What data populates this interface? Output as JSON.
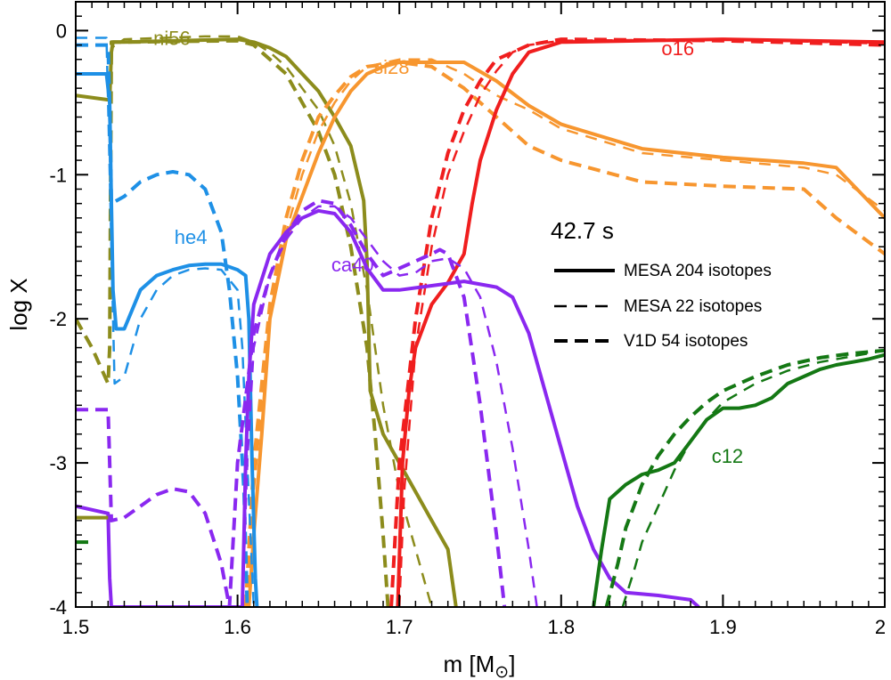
{
  "chart_data": {
    "type": "line",
    "title": "",
    "xlabel": "m [M",
    "xlabel_symbol": "⊙",
    "xlabel_close": "]",
    "ylabel": "log X",
    "xlim": [
      1.5,
      2.0
    ],
    "ylim": [
      -4,
      0.2
    ],
    "x_ticks": [
      {
        "value": 1.5,
        "label": "1.5"
      },
      {
        "value": 1.6,
        "label": "1.6"
      },
      {
        "value": 1.7,
        "label": "1.7"
      },
      {
        "value": 1.8,
        "label": "1.8"
      },
      {
        "value": 1.9,
        "label": "1.9"
      },
      {
        "value": 2.0,
        "label": "2"
      }
    ],
    "y_ticks": [
      {
        "value": 0,
        "label": "0"
      },
      {
        "value": -1,
        "label": "-1"
      },
      {
        "value": -2,
        "label": "-2"
      },
      {
        "value": -3,
        "label": "-3"
      },
      {
        "value": -4,
        "label": "-4"
      }
    ],
    "time_label": "42.7 s",
    "legend": [
      {
        "style": "solid",
        "label": "MESA 204 isotopes"
      },
      {
        "style": "dash_thin",
        "label": "MESA 22 isotopes"
      },
      {
        "style": "dash_thick",
        "label": "V1D 54 isotopes"
      }
    ],
    "isotopes": [
      {
        "name": "ni56",
        "color": "#8c8c1c",
        "label": {
          "text": "ni56",
          "x": 1.548,
          "y": -0.1
        }
      },
      {
        "name": "si28",
        "color": "#f7962f",
        "label": {
          "text": "si28",
          "x": 1.684,
          "y": -0.3
        }
      },
      {
        "name": "o16",
        "color": "#f01e1e",
        "label": {
          "text": "o16",
          "x": 1.862,
          "y": -0.17
        }
      },
      {
        "name": "he4",
        "color": "#1e90e6",
        "label": {
          "text": "he4",
          "x": 1.561,
          "y": -1.48
        }
      },
      {
        "name": "ca40",
        "color": "#8a28f0",
        "label": {
          "text": "ca40",
          "x": 1.658,
          "y": -1.67
        }
      },
      {
        "name": "c12",
        "color": "#147814",
        "label": {
          "text": "c12",
          "x": 1.893,
          "y": -3
        }
      }
    ],
    "series": [
      {
        "name": "ni56 MESA 204",
        "isotope": "ni56",
        "style": "solid",
        "x": [
          1.5,
          1.52,
          1.521,
          1.522,
          1.523,
          1.53,
          1.6,
          1.61,
          1.62,
          1.63,
          1.64,
          1.65,
          1.66,
          1.67,
          1.678,
          1.68,
          1.682,
          1.69,
          1.7,
          1.71,
          1.72,
          1.73,
          1.735
        ],
        "y": [
          -0.45,
          -0.48,
          -0.48,
          -0.15,
          -0.08,
          -0.08,
          -0.06,
          -0.08,
          -0.12,
          -0.18,
          -0.3,
          -0.42,
          -0.6,
          -0.8,
          -1.18,
          -1.6,
          -2.5,
          -2.8,
          -3.0,
          -3.2,
          -3.4,
          -3.6,
          -4.0
        ]
      },
      {
        "name": "ni56 MESA 22",
        "isotope": "ni56",
        "style": "dash_thin",
        "x": [
          1.5,
          1.52,
          1.521,
          1.522,
          1.53,
          1.58,
          1.6,
          1.61,
          1.62,
          1.63,
          1.64,
          1.65,
          1.66,
          1.67,
          1.68,
          1.69,
          1.7,
          1.71,
          1.72
        ],
        "y": [
          -0.45,
          -0.48,
          -0.48,
          -0.12,
          -0.06,
          -0.04,
          -0.04,
          -0.08,
          -0.15,
          -0.25,
          -0.4,
          -0.55,
          -0.8,
          -1.2,
          -1.8,
          -2.6,
          -3.2,
          -3.6,
          -4.0
        ]
      },
      {
        "name": "ni56 V1D 54",
        "isotope": "ni56",
        "style": "dash_thick",
        "x": [
          1.5,
          1.51,
          1.52,
          1.521,
          1.522,
          1.53,
          1.6,
          1.61,
          1.62,
          1.63,
          1.64,
          1.65,
          1.66,
          1.67,
          1.68,
          1.685,
          1.69,
          1.693
        ],
        "y": [
          -2.0,
          -2.2,
          -2.45,
          -2.2,
          -0.08,
          -0.08,
          -0.07,
          -0.1,
          -0.2,
          -0.3,
          -0.5,
          -0.7,
          -1.0,
          -1.5,
          -2.2,
          -2.8,
          -3.5,
          -4.0
        ]
      },
      {
        "name": "si28 MESA 204",
        "isotope": "si28",
        "style": "solid",
        "x": [
          1.607,
          1.61,
          1.615,
          1.62,
          1.63,
          1.64,
          1.65,
          1.66,
          1.67,
          1.68,
          1.69,
          1.7,
          1.72,
          1.74,
          1.76,
          1.78,
          1.8,
          1.85,
          1.9,
          1.95,
          1.97,
          2.0
        ],
        "y": [
          -4.0,
          -3.5,
          -2.8,
          -2.0,
          -1.45,
          -1.15,
          -0.85,
          -0.6,
          -0.42,
          -0.3,
          -0.25,
          -0.22,
          -0.22,
          -0.22,
          -0.35,
          -0.52,
          -0.65,
          -0.82,
          -0.88,
          -0.92,
          -0.95,
          -1.3
        ]
      },
      {
        "name": "si28 MESA 22",
        "isotope": "si28",
        "style": "dash_thin",
        "x": [
          1.606,
          1.61,
          1.62,
          1.63,
          1.64,
          1.65,
          1.66,
          1.67,
          1.68,
          1.7,
          1.72,
          1.74,
          1.76,
          1.78,
          1.8,
          1.85,
          1.9,
          1.95,
          1.97,
          2.0
        ],
        "y": [
          -4.0,
          -3.2,
          -2.0,
          -1.4,
          -1.0,
          -0.7,
          -0.5,
          -0.35,
          -0.25,
          -0.2,
          -0.2,
          -0.3,
          -0.45,
          -0.55,
          -0.68,
          -0.85,
          -0.9,
          -0.95,
          -1.0,
          -1.25
        ]
      },
      {
        "name": "si28 V1D 54",
        "isotope": "si28",
        "style": "dash_thick",
        "x": [
          1.605,
          1.61,
          1.62,
          1.63,
          1.64,
          1.65,
          1.66,
          1.67,
          1.68,
          1.7,
          1.72,
          1.74,
          1.76,
          1.78,
          1.8,
          1.85,
          1.9,
          1.95,
          1.97,
          2.0
        ],
        "y": [
          -4.0,
          -3.0,
          -1.9,
          -1.3,
          -0.9,
          -0.6,
          -0.45,
          -0.32,
          -0.25,
          -0.22,
          -0.25,
          -0.4,
          -0.6,
          -0.8,
          -0.9,
          -1.05,
          -1.08,
          -1.1,
          -1.3,
          -1.55
        ]
      },
      {
        "name": "o16 MESA 204",
        "isotope": "o16",
        "style": "solid",
        "x": [
          1.699,
          1.702,
          1.706,
          1.71,
          1.72,
          1.73,
          1.74,
          1.745,
          1.75,
          1.76,
          1.77,
          1.78,
          1.8,
          1.9,
          2.0
        ],
        "y": [
          -4.0,
          -3.0,
          -2.5,
          -2.2,
          -1.9,
          -1.75,
          -1.55,
          -1.2,
          -0.9,
          -0.55,
          -0.3,
          -0.15,
          -0.08,
          -0.06,
          -0.08
        ]
      },
      {
        "name": "o16 MESA 22",
        "isotope": "o16",
        "style": "dash_thin",
        "x": [
          1.7,
          1.703,
          1.71,
          1.72,
          1.73,
          1.74,
          1.75,
          1.76,
          1.77,
          1.78,
          1.8,
          1.9,
          2.0
        ],
        "y": [
          -4.0,
          -3.2,
          -2.2,
          -1.5,
          -1.0,
          -0.7,
          -0.45,
          -0.28,
          -0.15,
          -0.1,
          -0.07,
          -0.06,
          -0.09
        ]
      },
      {
        "name": "o16 V1D 54",
        "isotope": "o16",
        "style": "dash_thick",
        "x": [
          1.695,
          1.7,
          1.71,
          1.72,
          1.73,
          1.74,
          1.75,
          1.76,
          1.78,
          1.8,
          1.9,
          2.0
        ],
        "y": [
          -4.0,
          -3.0,
          -2.0,
          -1.3,
          -0.85,
          -0.55,
          -0.35,
          -0.2,
          -0.1,
          -0.06,
          -0.07,
          -0.1
        ]
      },
      {
        "name": "he4 MESA 204",
        "isotope": "he4",
        "style": "solid",
        "x": [
          1.5,
          1.519,
          1.521,
          1.522,
          1.523,
          1.525,
          1.53,
          1.54,
          1.55,
          1.56,
          1.57,
          1.58,
          1.59,
          1.6,
          1.605,
          1.607,
          1.609,
          1.611,
          1.612
        ],
        "y": [
          -0.3,
          -0.3,
          -0.5,
          -1.2,
          -1.8,
          -2.07,
          -2.07,
          -1.8,
          -1.7,
          -1.66,
          -1.63,
          -1.62,
          -1.62,
          -1.66,
          -1.7,
          -2.0,
          -3.0,
          -3.8,
          -4.0
        ]
      },
      {
        "name": "he4 MESA 22",
        "isotope": "he4",
        "style": "dash_thin",
        "x": [
          1.5,
          1.519,
          1.52,
          1.522,
          1.524,
          1.53,
          1.54,
          1.55,
          1.56,
          1.57,
          1.58,
          1.59,
          1.6,
          1.603,
          1.606,
          1.61
        ],
        "y": [
          -0.05,
          -0.05,
          -0.5,
          -1.5,
          -2.45,
          -2.4,
          -2.0,
          -1.8,
          -1.7,
          -1.66,
          -1.65,
          -1.66,
          -1.8,
          -2.2,
          -3.0,
          -4.0
        ]
      },
      {
        "name": "he4 V1D 54",
        "isotope": "he4",
        "style": "dash_thick",
        "x": [
          1.5,
          1.52,
          1.521,
          1.522,
          1.53,
          1.54,
          1.55,
          1.56,
          1.57,
          1.58,
          1.59,
          1.595,
          1.6,
          1.604,
          1.606
        ],
        "y": [
          -0.1,
          -0.1,
          -0.5,
          -1.2,
          -1.15,
          -1.05,
          -1.0,
          -0.98,
          -1.0,
          -1.1,
          -1.4,
          -1.8,
          -2.4,
          -3.2,
          -4.0
        ]
      },
      {
        "name": "ca40 MESA 204",
        "isotope": "ca40",
        "style": "solid",
        "x": [
          1.5,
          1.52,
          1.521,
          1.522,
          1.603,
          1.605,
          1.607,
          1.61,
          1.62,
          1.63,
          1.64,
          1.65,
          1.66,
          1.67,
          1.68,
          1.69,
          1.7,
          1.72,
          1.74,
          1.76,
          1.77,
          1.78,
          1.79,
          1.8,
          1.81,
          1.82,
          1.83,
          1.84,
          1.86,
          1.88,
          1.885
        ],
        "y": [
          -3.3,
          -3.35,
          -3.8,
          -4.0,
          -4.0,
          -3.0,
          -2.4,
          -1.9,
          -1.55,
          -1.4,
          -1.3,
          -1.25,
          -1.27,
          -1.4,
          -1.65,
          -1.8,
          -1.8,
          -1.77,
          -1.74,
          -1.78,
          -1.85,
          -2.1,
          -2.5,
          -2.9,
          -3.3,
          -3.6,
          -3.8,
          -3.9,
          -3.92,
          -3.95,
          -4.0
        ]
      },
      {
        "name": "ca40 MESA 22",
        "isotope": "ca40",
        "style": "dash_thin",
        "x": [
          1.603,
          1.606,
          1.61,
          1.62,
          1.63,
          1.64,
          1.65,
          1.66,
          1.67,
          1.68,
          1.69,
          1.7,
          1.71,
          1.72,
          1.73,
          1.74,
          1.75,
          1.76,
          1.77,
          1.78,
          1.785
        ],
        "y": [
          -4.0,
          -3.0,
          -2.2,
          -1.7,
          -1.45,
          -1.3,
          -1.22,
          -1.22,
          -1.3,
          -1.45,
          -1.6,
          -1.7,
          -1.68,
          -1.6,
          -1.58,
          -1.65,
          -1.85,
          -2.3,
          -2.9,
          -3.6,
          -4.0
        ]
      },
      {
        "name": "ca40 V1D 54",
        "isotope": "ca40",
        "style": "dash_thick",
        "x": [
          1.5,
          1.52,
          1.521,
          1.522,
          1.53,
          1.54,
          1.55,
          1.56,
          1.57,
          1.58,
          1.59,
          1.595,
          1.6,
          1.61,
          1.62,
          1.63,
          1.64,
          1.65,
          1.66,
          1.67,
          1.68,
          1.69,
          1.7,
          1.71,
          1.72,
          1.725,
          1.73,
          1.74,
          1.75,
          1.76,
          1.765
        ],
        "y": [
          -2.63,
          -2.63,
          -3.0,
          -3.4,
          -3.38,
          -3.3,
          -3.22,
          -3.18,
          -3.2,
          -3.35,
          -3.7,
          -4.0,
          -3.0,
          -2.1,
          -1.7,
          -1.42,
          -1.25,
          -1.18,
          -1.2,
          -1.35,
          -1.55,
          -1.7,
          -1.65,
          -1.6,
          -1.55,
          -1.52,
          -1.55,
          -1.85,
          -2.6,
          -3.5,
          -4.0
        ]
      },
      {
        "name": "c12 MESA 204",
        "isotope": "c12",
        "style": "solid",
        "x": [
          1.82,
          1.825,
          1.83,
          1.84,
          1.85,
          1.86,
          1.87,
          1.88,
          1.89,
          1.9,
          1.91,
          1.92,
          1.93,
          1.94,
          1.95,
          1.96,
          1.97,
          1.98,
          1.99,
          2.0
        ],
        "y": [
          -4.0,
          -3.6,
          -3.25,
          -3.15,
          -3.08,
          -3.05,
          -3.0,
          -2.85,
          -2.7,
          -2.62,
          -2.62,
          -2.6,
          -2.55,
          -2.45,
          -2.4,
          -2.35,
          -2.32,
          -2.3,
          -2.28,
          -2.25
        ]
      },
      {
        "name": "c12 MESA 22",
        "isotope": "c12",
        "style": "dash_thin",
        "x": [
          1.838,
          1.845,
          1.85,
          1.86,
          1.87,
          1.88,
          1.89,
          1.9,
          1.92,
          1.94,
          1.96,
          1.98,
          2.0
        ],
        "y": [
          -4.0,
          -3.75,
          -3.55,
          -3.3,
          -3.05,
          -2.85,
          -2.7,
          -2.58,
          -2.45,
          -2.36,
          -2.3,
          -2.26,
          -2.22
        ]
      },
      {
        "name": "c12 V1D 54",
        "isotope": "c12",
        "style": "dash_thick",
        "x": [
          1.828,
          1.835,
          1.84,
          1.85,
          1.86,
          1.87,
          1.88,
          1.89,
          1.9,
          1.92,
          1.94,
          1.96,
          1.98,
          2.0
        ],
        "y": [
          -4.0,
          -3.7,
          -3.45,
          -3.15,
          -2.95,
          -2.8,
          -2.68,
          -2.58,
          -2.5,
          -2.4,
          -2.32,
          -2.27,
          -2.24,
          -2.22
        ]
      },
      {
        "name": "ni56 V1D 54 stub",
        "isotope": "ni56",
        "style": "solid",
        "x": [
          1.5,
          1.52
        ],
        "y": [
          -3.38,
          -3.38
        ]
      },
      {
        "name": "c12 stub",
        "isotope": "c12",
        "style": "dash_thick",
        "x": [
          1.5,
          1.51
        ],
        "y": [
          -3.55,
          -3.55
        ]
      }
    ]
  }
}
